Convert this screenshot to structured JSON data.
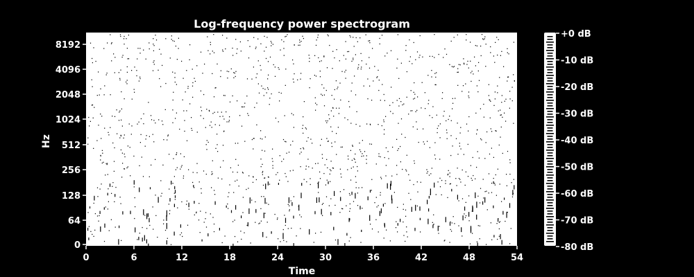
{
  "chart_data": {
    "type": "heatmap",
    "title": "Log-frequency power spectrogram",
    "xlabel": "Time",
    "ylabel": "Hz",
    "x_ticks": [
      "0",
      "6",
      "12",
      "18",
      "24",
      "30",
      "36",
      "42",
      "48",
      "54"
    ],
    "xlim": [
      0,
      54
    ],
    "y_ticks": [
      "0",
      "64",
      "128",
      "256",
      "512",
      "1024",
      "2048",
      "4096",
      "8192"
    ],
    "y_scale": "log2",
    "colorbar": {
      "ticks": [
        "+0 dB",
        "-10 dB",
        "-20 dB",
        "-30 dB",
        "-40 dB",
        "-50 dB",
        "-60 dB",
        "-70 dB",
        "-80 dB"
      ],
      "range_db": [
        -80,
        0
      ]
    },
    "colors": {
      "background": "#000000",
      "foreground": "#ffffff"
    }
  }
}
